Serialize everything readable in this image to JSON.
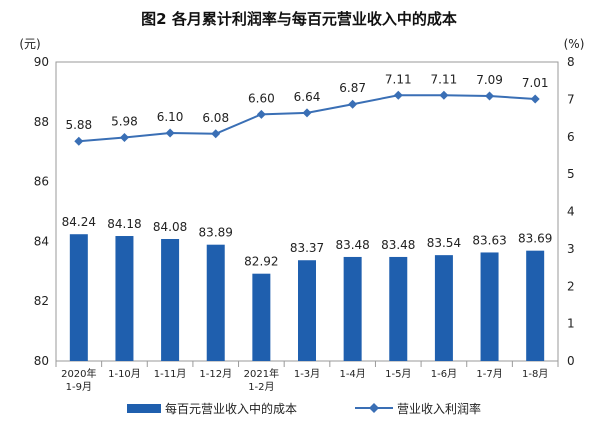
{
  "chart_data": {
    "type": "bar+line",
    "title": "图2  各月累计利润率与每百元营业收入中的成本",
    "left_unit": "(元)",
    "right_unit": "(%)",
    "categories": [
      [
        "2020年",
        "1-9月"
      ],
      [
        "1-10月"
      ],
      [
        "1-11月"
      ],
      [
        "1-12月"
      ],
      [
        "2021年",
        "1-2月"
      ],
      [
        "1-3月"
      ],
      [
        "1-4月"
      ],
      [
        "1-5月"
      ],
      [
        "1-6月"
      ],
      [
        "1-7月"
      ],
      [
        "1-8月"
      ]
    ],
    "series": [
      {
        "name": "每百元营业收入中的成本",
        "type": "bar",
        "axis": "left",
        "color": "#1f5fae",
        "values": [
          84.24,
          84.18,
          84.08,
          83.89,
          82.92,
          83.37,
          83.48,
          83.48,
          83.54,
          83.63,
          83.69
        ],
        "labels": [
          "84.24",
          "84.18",
          "84.08",
          "83.89",
          "82.92",
          "83.37",
          "83.48",
          "83.48",
          "83.54",
          "83.63",
          "83.69"
        ]
      },
      {
        "name": "营业收入利润率",
        "type": "line",
        "axis": "right",
        "color": "#3a6fb5",
        "values": [
          5.88,
          5.98,
          6.1,
          6.08,
          6.6,
          6.64,
          6.87,
          7.11,
          7.11,
          7.09,
          7.01
        ],
        "labels": [
          "5.88",
          "5.98",
          "6.10",
          "6.08",
          "6.60",
          "6.64",
          "6.87",
          "7.11",
          "7.11",
          "7.09",
          "7.01"
        ]
      }
    ],
    "y_left": {
      "min": 80,
      "max": 90,
      "ticks": [
        "80",
        "82",
        "84",
        "86",
        "88",
        "90"
      ]
    },
    "y_right": {
      "min": 0,
      "max": 8,
      "ticks": [
        "0",
        "1",
        "2",
        "3",
        "4",
        "5",
        "6",
        "7",
        "8"
      ]
    },
    "grid": false,
    "legend_position": "bottom"
  }
}
